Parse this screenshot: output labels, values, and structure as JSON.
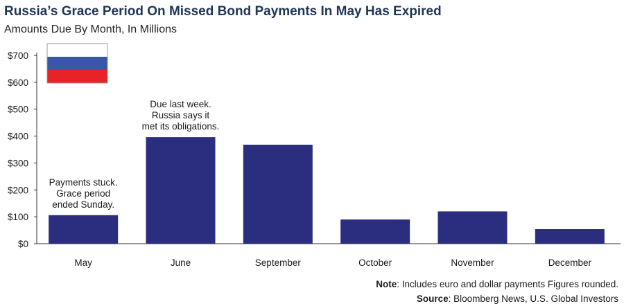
{
  "chart_data": {
    "type": "bar",
    "title": "Russia’s Grace Period On Missed Bond Payments In May Has Expired",
    "subtitle": "Amounts Due By Month, In Millions",
    "xlabel": "",
    "ylabel": "",
    "categories": [
      "May",
      "June",
      "September",
      "October",
      "November",
      "December"
    ],
    "values": [
      106,
      396,
      368,
      90,
      120,
      54
    ],
    "ylim": [
      0,
      700
    ],
    "yticks": [
      0,
      100,
      200,
      300,
      400,
      500,
      600,
      700
    ],
    "ytick_labels": [
      "$0",
      "$100",
      "$200",
      "$300",
      "$400",
      "$500",
      "$600",
      "$700"
    ],
    "bar_color": "#2b2e7e",
    "annotations": [
      {
        "category": "May",
        "lines": [
          "Payments stuck.",
          "Grace period",
          "ended Sunday."
        ]
      },
      {
        "category": "June",
        "lines": [
          "Due last week.",
          "Russia says it",
          "met its obligations."
        ]
      }
    ],
    "flag_colors": [
      "#ffffff",
      "#3a56a8",
      "#e82228"
    ]
  },
  "footer": {
    "note_label": "Note",
    "note_text": ": Includes euro and dollar payments Figures rounded.",
    "source_label": "Source",
    "source_text": ": Bloomberg News, U.S. Global Investors"
  }
}
